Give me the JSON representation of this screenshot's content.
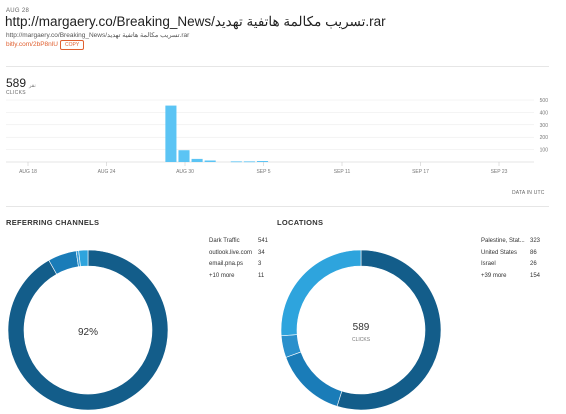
{
  "header": {
    "date": "AUG 28",
    "title": "http://margaery.co/Breaking_News/تسريب مكالمة هاتفية تهديد.rar",
    "long_url": "http://margaery.co/Breaking_News/تسريب مكالمة هاتفية تهديد.rar",
    "short_url": "bitly.com/2bP8nlU",
    "copy_label": "COPY"
  },
  "clicks": {
    "total": "589",
    "unit": "نقر",
    "label": "CLICKS",
    "data_note": "DATA IN UTC"
  },
  "chart_data": {
    "type": "bar",
    "x_ticks": [
      "AUG 18",
      "AUG 24",
      "AUG 30",
      "SEP 5",
      "SEP 11",
      "SEP 17",
      "SEP 23"
    ],
    "y_ticks": [
      100,
      200,
      300,
      400,
      500
    ],
    "ylim": [
      0,
      500
    ],
    "values": [
      455,
      95,
      25,
      12,
      5,
      5,
      8
    ],
    "bar_day_offsets": [
      0,
      1,
      2,
      3,
      5,
      6,
      7
    ],
    "bar_start_tick": "AUG 30",
    "title": "",
    "xlabel": "",
    "ylabel": "",
    "colors": {
      "bar": "#5bc4f4",
      "grid": "#e8e8e8",
      "axis": "#cccccc"
    }
  },
  "referring": {
    "title": "REFERRING CHANNELS",
    "center_label": "92%",
    "items": [
      {
        "label": "Dark Traffic",
        "value": 541,
        "value_text": "541",
        "color": "#135d8a"
      },
      {
        "label": "outlook.live.com",
        "value": 34,
        "value_text": "34",
        "color": "#1a7cb8"
      },
      {
        "label": "email.pna.ps",
        "value": 3,
        "value_text": "3",
        "color": "#3b9fd8"
      },
      {
        "label": "+10 more",
        "value": 11,
        "value_text": "11",
        "color": "#2ea4dd"
      }
    ]
  },
  "locations": {
    "title": "LOCATIONS",
    "center_value": "589",
    "center_label": "CLICKS",
    "items": [
      {
        "label": "Palestine, Stat...",
        "value": 323,
        "value_text": "323",
        "color": "#135d8a"
      },
      {
        "label": "United States",
        "value": 86,
        "value_text": "86",
        "color": "#1a7cb8"
      },
      {
        "label": "Israel",
        "value": 26,
        "value_text": "26",
        "color": "#2a90cc"
      },
      {
        "label": "+39 more",
        "value": 154,
        "value_text": "154",
        "color": "#2ea4dd"
      }
    ]
  }
}
